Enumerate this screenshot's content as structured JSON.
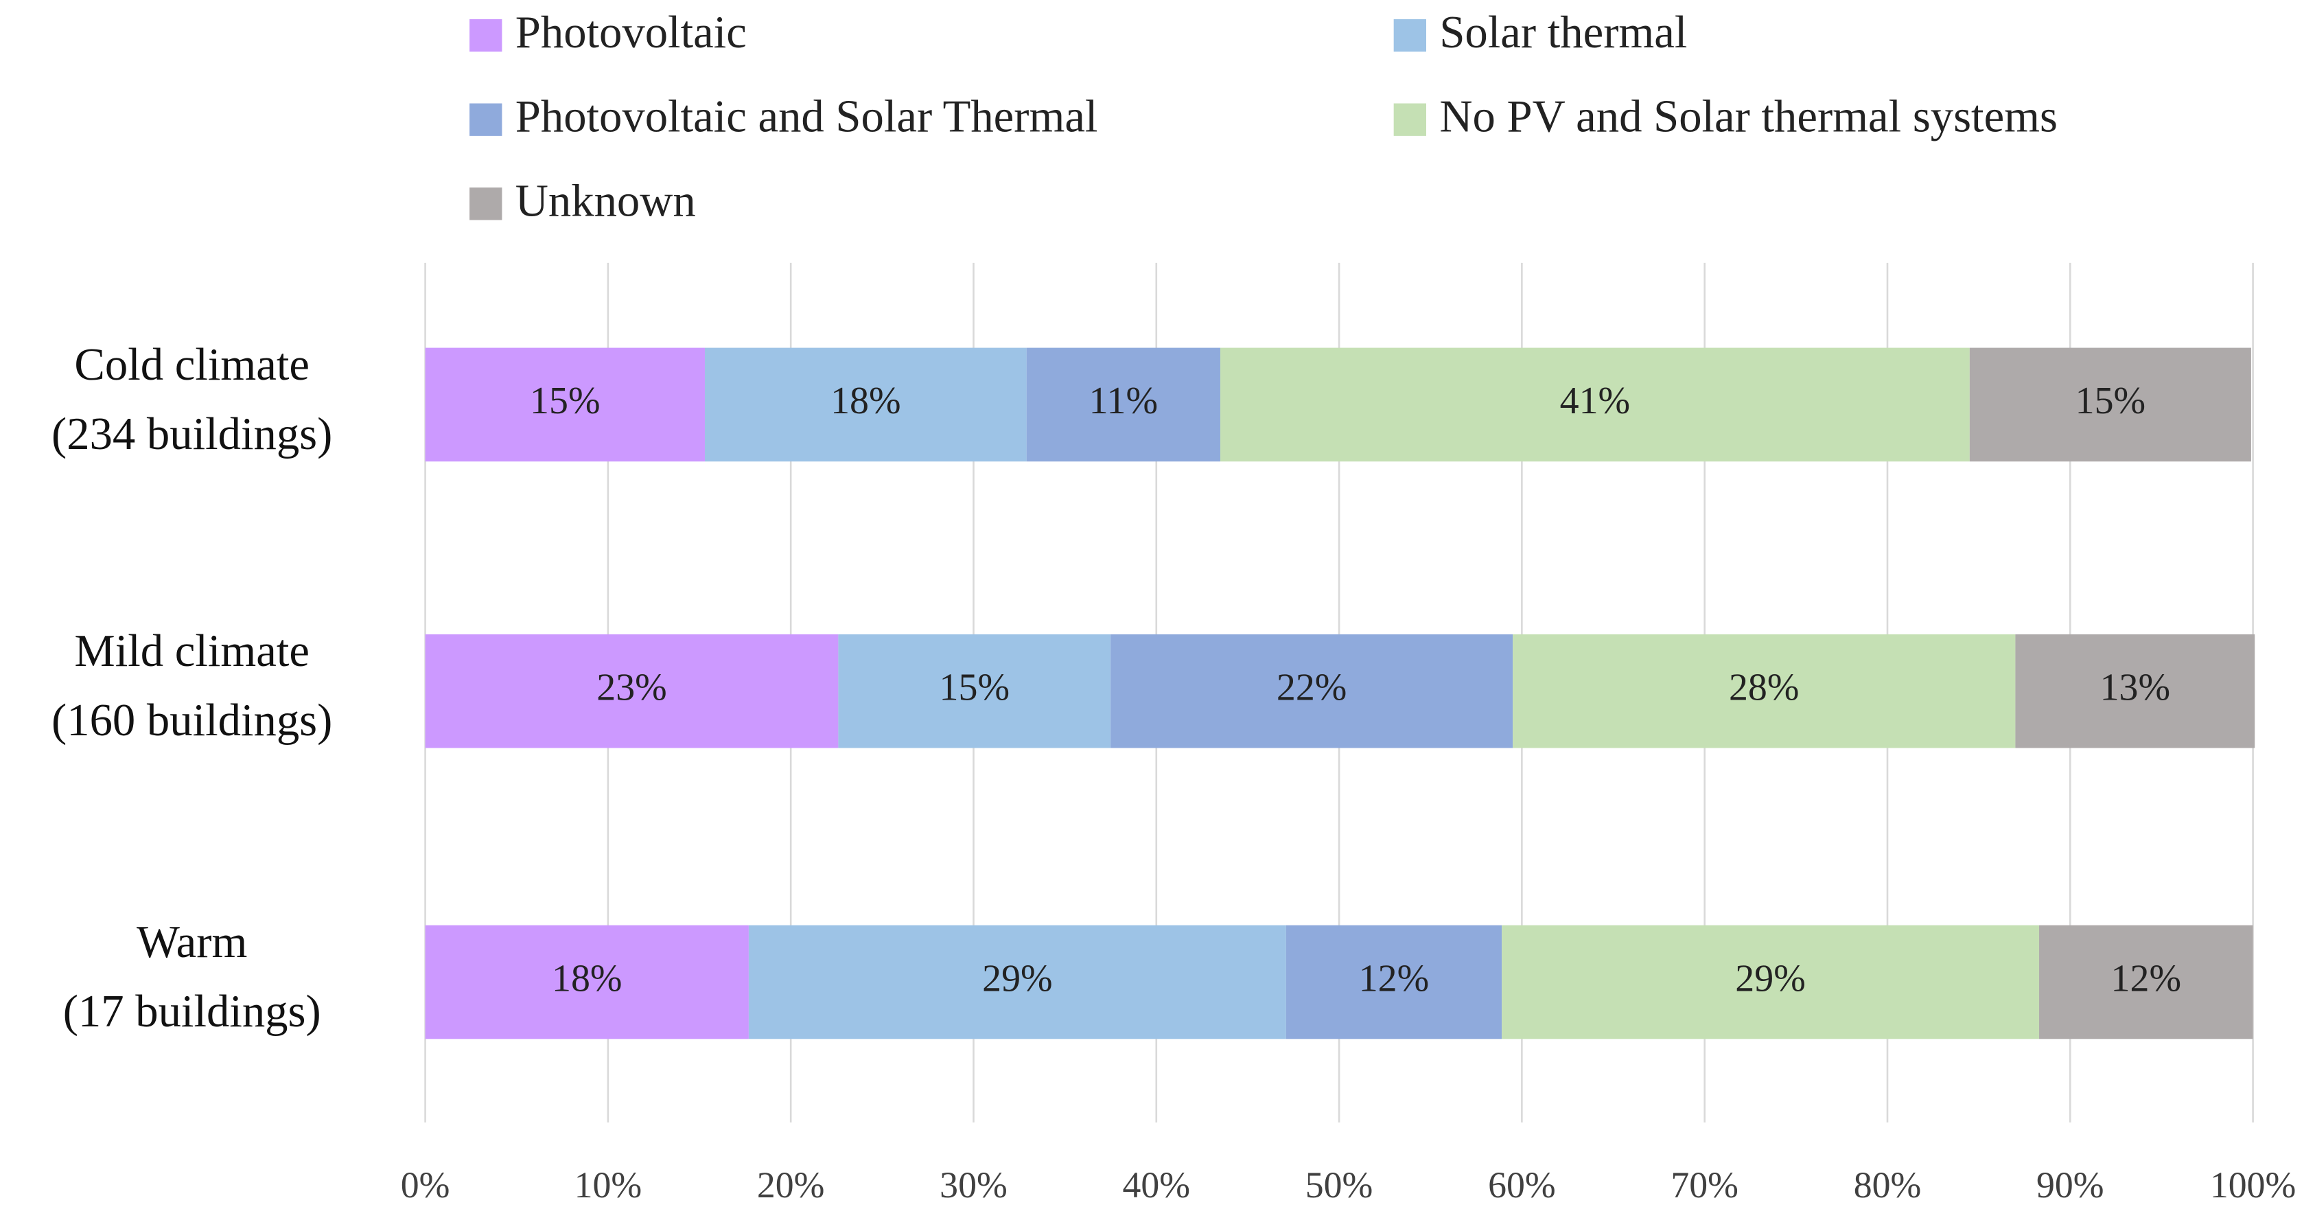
{
  "chart_data": {
    "type": "stacked_bar_horizontal",
    "categories": [
      [
        "Cold climate",
        "(234 buildings)"
      ],
      [
        "Mild climate",
        "(160 buildings)"
      ],
      [
        "Warm",
        "(17 buildings)"
      ]
    ],
    "series": [
      {
        "name": "Photovoltaic",
        "color": "#cc99ff",
        "values": [
          15.3,
          22.6,
          17.7
        ],
        "value_labels": [
          "15%",
          "23%",
          "18%"
        ]
      },
      {
        "name": "Solar thermal",
        "color": "#9dc3e6",
        "values": [
          17.6,
          14.9,
          29.4
        ],
        "value_labels": [
          "18%",
          "15%",
          "29%"
        ]
      },
      {
        "name": "Photovoltaic and Solar Thermal",
        "color": "#8faadc",
        "values": [
          10.6,
          22.0,
          11.8
        ],
        "value_labels": [
          "11%",
          "22%",
          "12%"
        ]
      },
      {
        "name": "No PV and Solar thermal systems",
        "color": "#c5e0b4",
        "values": [
          41.0,
          27.5,
          29.4
        ],
        "value_labels": [
          "41%",
          "28%",
          "29%"
        ]
      },
      {
        "name": "Unknown",
        "color": "#aeaaaa",
        "values": [
          15.4,
          13.1,
          11.7
        ],
        "value_labels": [
          "15%",
          "13%",
          "12%"
        ]
      }
    ],
    "xlim": [
      0,
      100
    ],
    "xticks": [
      {
        "value": 0,
        "label": "0%"
      },
      {
        "value": 10,
        "label": "10%"
      },
      {
        "value": 20,
        "label": "20%"
      },
      {
        "value": 30,
        "label": "30%"
      },
      {
        "value": 40,
        "label": "40%"
      },
      {
        "value": 50,
        "label": "50%"
      },
      {
        "value": 60,
        "label": "60%"
      },
      {
        "value": 70,
        "label": "70%"
      },
      {
        "value": 80,
        "label": "80%"
      },
      {
        "value": 90,
        "label": "90%"
      },
      {
        "value": 100,
        "label": "100%"
      }
    ],
    "grid": true,
    "legend": "top"
  }
}
